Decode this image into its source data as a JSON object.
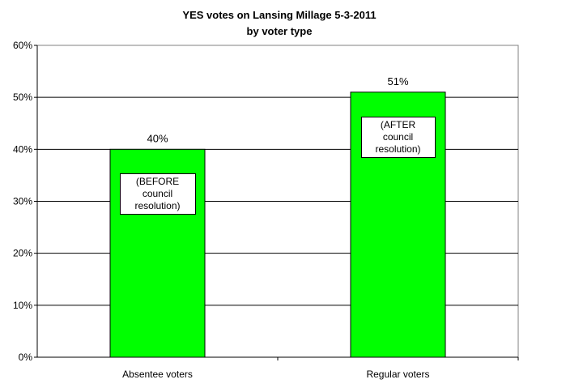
{
  "chart_data": {
    "type": "bar",
    "title": "YES votes on Lansing Millage 5-3-2011",
    "subtitle": "by voter type",
    "categories": [
      "Absentee voters",
      "Regular voters"
    ],
    "values": [
      40,
      51
    ],
    "data_labels": [
      "40%",
      "51%"
    ],
    "ylim": [
      0,
      60
    ],
    "yticks": [
      "0%",
      "10%",
      "20%",
      "30%",
      "40%",
      "50%",
      "60%"
    ],
    "grid": "horizontal",
    "bar_color": "#00ff00",
    "legend": "none",
    "annotations": [
      {
        "category": "Absentee voters",
        "lines": [
          "(BEFORE",
          "council",
          "resolution)"
        ]
      },
      {
        "category": "Regular voters",
        "lines": [
          "(AFTER council",
          "resolution)"
        ]
      }
    ]
  }
}
